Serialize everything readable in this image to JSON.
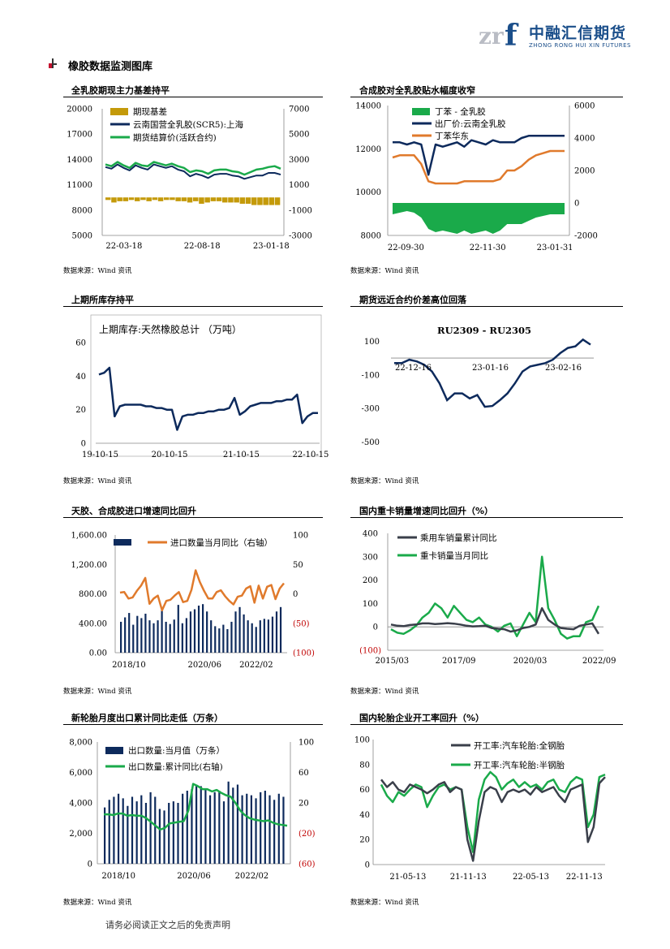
{
  "header": {
    "logo_cn": "中融汇信期货",
    "logo_en": "ZHONG RONG HUI XIN FUTURES",
    "logo_mark": "zrf"
  },
  "section_title": "橡胶数据监测图库",
  "source_label": "数据来源：Wind 资讯",
  "disclaimer": "请务必阅读正文之后的免责声明",
  "colors": {
    "navy": "#0d2a5c",
    "green": "#1aaa4a",
    "gold": "#c49a0a",
    "orange": "#e07a2c",
    "dark": "#3a3f4a"
  },
  "panels": [
    {
      "title": "全乳胶期现主力基差持平"
    },
    {
      "title": "合成胶对全乳胶贴水幅度收窄"
    },
    {
      "title": "上期所库存持平"
    },
    {
      "title": "期货远近合约价差高位回落"
    },
    {
      "title": "天胶、合成胶进口增速同比回升"
    },
    {
      "title": "国内重卡销量增速同比回升（%）"
    },
    {
      "title": "新轮胎月度出口累计同比走低（万条）"
    },
    {
      "title": "国内轮胎企业开工率回升（%）"
    }
  ],
  "chart_data": [
    {
      "type": "line",
      "legend": [
        "期现基差",
        "云南国营全乳胶(SCR5):上海",
        "期货结算价(活跃合约)"
      ],
      "x_ticks": [
        "22-03-18",
        "22-08-18",
        "23-01-18"
      ],
      "y_left_ticks": [
        "20000",
        "17000",
        "14000",
        "11000",
        "8000",
        "5000"
      ],
      "y_right_ticks": [
        "7000",
        "5000",
        "3000",
        "1000",
        "-1000",
        "-3000"
      ],
      "ylim_left": [
        5000,
        20000
      ],
      "ylim_right": [
        -3000,
        7000
      ],
      "series": [
        {
          "name": "云南国营全乳胶(SCR5):上海",
          "axis": "left",
          "values": [
            13100,
            12900,
            13400,
            13000,
            12700,
            13300,
            13000,
            12800,
            13400,
            13200,
            13000,
            13200,
            12800,
            12600,
            12000,
            12300,
            12100,
            11800,
            12200,
            12300,
            12300,
            12100,
            12000,
            11700,
            11900,
            12100,
            12100,
            12400,
            12400,
            12200
          ]
        },
        {
          "name": "期货结算价(活跃合约)",
          "axis": "left",
          "values": [
            13400,
            13200,
            13700,
            13300,
            13000,
            13600,
            13300,
            13200,
            13700,
            13500,
            13300,
            13500,
            13200,
            13000,
            12500,
            12700,
            12600,
            12300,
            12700,
            12800,
            12800,
            12600,
            12500,
            12200,
            12500,
            12800,
            12900,
            13100,
            13200,
            12900
          ]
        },
        {
          "name": "期现基差",
          "axis": "right",
          "type": "bar",
          "values": [
            -200,
            -400,
            -300,
            -300,
            -200,
            -300,
            -200,
            -300,
            -200,
            -300,
            -200,
            -200,
            -300,
            -300,
            -400,
            -300,
            -500,
            -400,
            -300,
            -300,
            -400,
            -400,
            -400,
            -500,
            -500,
            -600,
            -600,
            -600,
            -600,
            -600
          ]
        }
      ]
    },
    {
      "type": "line",
      "legend": [
        "丁苯 - 全乳胶",
        "出厂价:云南全乳胶",
        "丁苯华东"
      ],
      "x_ticks": [
        "22-09-30",
        "22-11-30",
        "23-01-31"
      ],
      "y_left_ticks": [
        "14000",
        "12000",
        "10000",
        "8000"
      ],
      "y_right_ticks": [
        "6000",
        "4000",
        "2000",
        "0",
        "-2000"
      ],
      "ylim_left": [
        8000,
        14000
      ],
      "ylim_right": [
        -2000,
        6000
      ],
      "series": [
        {
          "name": "出厂价:云南全乳胶",
          "axis": "left",
          "values": [
            12300,
            12300,
            12200,
            12300,
            12200,
            10800,
            12200,
            12100,
            12200,
            12300,
            12100,
            12400,
            12300,
            12200,
            12400,
            12300,
            12300,
            12300,
            12500,
            12600,
            12600,
            12600,
            12600,
            12600,
            12600
          ]
        },
        {
          "name": "丁苯华东",
          "axis": "left",
          "values": [
            11600,
            11700,
            11700,
            11700,
            11300,
            10500,
            10400,
            10400,
            10400,
            10400,
            10500,
            10500,
            10500,
            10500,
            10500,
            10600,
            11000,
            11000,
            11200,
            11500,
            11700,
            11800,
            11900,
            11900,
            11900
          ]
        },
        {
          "name": "丁苯 - 全乳胶",
          "axis": "right",
          "type": "area",
          "values": [
            -700,
            -600,
            -500,
            -600,
            -900,
            -1600,
            -1800,
            -1700,
            -1800,
            -1900,
            -1700,
            -1900,
            -1800,
            -1700,
            -1900,
            -1700,
            -1300,
            -1300,
            -1300,
            -1100,
            -900,
            -800,
            -700,
            -700,
            -700
          ]
        }
      ]
    },
    {
      "type": "line",
      "title": "上期库存:天然橡胶总计  （万吨）",
      "x_ticks": [
        "19-10-15",
        "20-10-15",
        "21-10-15",
        "22-10-15"
      ],
      "y_ticks": [
        "60",
        "40",
        "20",
        "0"
      ],
      "ylim": [
        0,
        60
      ],
      "series": [
        {
          "name": "上期库存:天然橡胶总计",
          "values": [
            41,
            42,
            45,
            16,
            22,
            23,
            23,
            23,
            23,
            22,
            22,
            21,
            21,
            20,
            20,
            8,
            16,
            17,
            17,
            18,
            18,
            19,
            19,
            20,
            20,
            21,
            27,
            17,
            19,
            22,
            23,
            24,
            24,
            24,
            25,
            25,
            26,
            26,
            29,
            12,
            16,
            18,
            18
          ]
        }
      ]
    },
    {
      "type": "line",
      "title": "RU2309 - RU2305",
      "x_ticks": [
        "22-12-16",
        "23-01-16",
        "23-02-16"
      ],
      "y_ticks": [
        "100",
        "-100",
        "-300",
        "-500"
      ],
      "ylim": [
        -550,
        150
      ],
      "series": [
        {
          "name": "RU2309 - RU2305",
          "values": [
            -30,
            -30,
            -10,
            -20,
            -40,
            -80,
            -150,
            -250,
            -210,
            -210,
            -240,
            -220,
            -290,
            -285,
            -250,
            -210,
            -150,
            -80,
            -50,
            -40,
            -30,
            -10,
            30,
            60,
            70,
            110,
            80
          ]
        }
      ]
    },
    {
      "type": "bar",
      "legend": [
        "进口数量当月同比（右轴）"
      ],
      "x_ticks": [
        "2018/10",
        "2020/06",
        "2022/02"
      ],
      "y_left_ticks": [
        "1,600.00",
        "1,200.00",
        "800.00",
        "400.00",
        "0.00"
      ],
      "y_right_ticks": [
        "100",
        "50",
        "0",
        "(50)",
        "(100)"
      ],
      "ylim_left": [
        0,
        1600
      ],
      "ylim_right": [
        -100,
        100
      ],
      "series": [
        {
          "name": "进口数量",
          "axis": "left",
          "values": [
            420,
            480,
            540,
            380,
            500,
            470,
            530,
            440,
            400,
            440,
            600,
            420,
            390,
            450,
            650,
            400,
            470,
            560,
            590,
            640,
            660,
            560,
            440,
            360,
            330,
            380,
            320,
            420,
            560,
            620,
            520,
            440,
            400,
            350,
            440,
            460,
            450,
            490,
            560,
            620
          ]
        },
        {
          "name": "进口数量当月同比（右轴）",
          "axis": "right",
          "values": [
            2,
            3,
            -8,
            -6,
            5,
            14,
            27,
            -17,
            -8,
            -3,
            -28,
            -12,
            -10,
            -3,
            3,
            -14,
            -12,
            7,
            40,
            20,
            5,
            -8,
            -8,
            3,
            6,
            -4,
            -12,
            -18,
            -5,
            -3,
            9,
            13,
            -15,
            14,
            -8,
            12,
            15,
            -9,
            9,
            18
          ]
        }
      ]
    },
    {
      "type": "line",
      "legend": [
        "乘用车销量累计同比",
        "重卡销量当月同比"
      ],
      "x_ticks": [
        "2015/03",
        "2017/09",
        "2020/03",
        "2022/09"
      ],
      "y_ticks": [
        "400",
        "300",
        "200",
        "100",
        "0",
        "(100)"
      ],
      "ylim": [
        -100,
        400
      ],
      "series": [
        {
          "name": "乘用车销量累计同比",
          "values": [
            10,
            5,
            3,
            8,
            10,
            15,
            15,
            12,
            14,
            16,
            14,
            10,
            5,
            2,
            3,
            5,
            -5,
            -8,
            -10,
            -20,
            -15,
            -5,
            0,
            10,
            80,
            30,
            10,
            -5,
            -8,
            -10,
            5,
            10,
            15,
            -30
          ]
        },
        {
          "name": "重卡销量当月同比",
          "values": [
            -10,
            -25,
            -30,
            -15,
            5,
            40,
            60,
            100,
            80,
            40,
            90,
            60,
            30,
            20,
            40,
            10,
            0,
            -20,
            5,
            15,
            -40,
            10,
            60,
            20,
            300,
            80,
            30,
            -30,
            -50,
            -40,
            -40,
            20,
            30,
            90
          ]
        }
      ]
    },
    {
      "type": "bar",
      "legend": [
        "出口数量:当月值（万条）",
        "出口数量:累计同比(右轴)"
      ],
      "x_ticks": [
        "2018/10",
        "2020/06",
        "2022/02"
      ],
      "y_left_ticks": [
        "8,000",
        "6,000",
        "4,000",
        "2,000",
        "0"
      ],
      "y_right_ticks": [
        "100",
        "60",
        "20",
        "(20)",
        "(60)"
      ],
      "ylim_left": [
        0,
        8000
      ],
      "ylim_right": [
        -60,
        100
      ],
      "series": [
        {
          "name": "出口数量:当月值（万条）",
          "axis": "left",
          "values": [
            3700,
            4200,
            4400,
            4600,
            4300,
            3800,
            4400,
            4100,
            4500,
            4000,
            4700,
            4400,
            3600,
            3500,
            4000,
            4100,
            4000,
            4600,
            4800,
            4900,
            5200,
            5100,
            4900,
            4500,
            4700,
            4800,
            4100,
            5400,
            5000,
            5200,
            4500,
            4600,
            4500,
            4300,
            4700,
            4800,
            4500,
            4200,
            4600,
            4400
          ]
        },
        {
          "name": "出口数量:累计同比(右轴)",
          "axis": "right",
          "values": [
            5,
            5,
            4,
            6,
            6,
            3,
            4,
            3,
            3,
            0,
            -5,
            -10,
            -15,
            -13,
            -7,
            -6,
            -5,
            -4,
            10,
            45,
            42,
            38,
            38,
            35,
            37,
            33,
            30,
            28,
            20,
            10,
            4,
            0,
            -2,
            -3,
            -4,
            -3,
            -6,
            -8,
            -9,
            -10
          ]
        }
      ]
    },
    {
      "type": "line",
      "legend": [
        "开工率:汽车轮胎:全钢胎",
        "开工率:汽车轮胎:半钢胎"
      ],
      "x_ticks": [
        "21-05-13",
        "21-11-13",
        "22-05-13",
        "22-11-13"
      ],
      "y_ticks": [
        "100",
        "80",
        "60",
        "40",
        "20",
        "0"
      ],
      "ylim": [
        0,
        100
      ],
      "series": [
        {
          "name": "开工率:汽车轮胎:全钢胎",
          "values": [
            68,
            62,
            66,
            60,
            58,
            64,
            62,
            60,
            57,
            60,
            64,
            66,
            58,
            62,
            60,
            20,
            3,
            35,
            58,
            62,
            60,
            50,
            58,
            60,
            58,
            60,
            56,
            62,
            58,
            60,
            62,
            55,
            50,
            60,
            62,
            64,
            18,
            30,
            65,
            70
          ]
        },
        {
          "name": "开工率:汽车轮胎:半钢胎",
          "values": [
            64,
            55,
            50,
            58,
            55,
            60,
            64,
            62,
            46,
            55,
            62,
            64,
            60,
            62,
            60,
            30,
            10,
            52,
            68,
            74,
            70,
            60,
            65,
            68,
            62,
            66,
            62,
            64,
            60,
            66,
            68,
            60,
            58,
            66,
            70,
            68,
            30,
            40,
            70,
            72
          ]
        }
      ]
    }
  ]
}
